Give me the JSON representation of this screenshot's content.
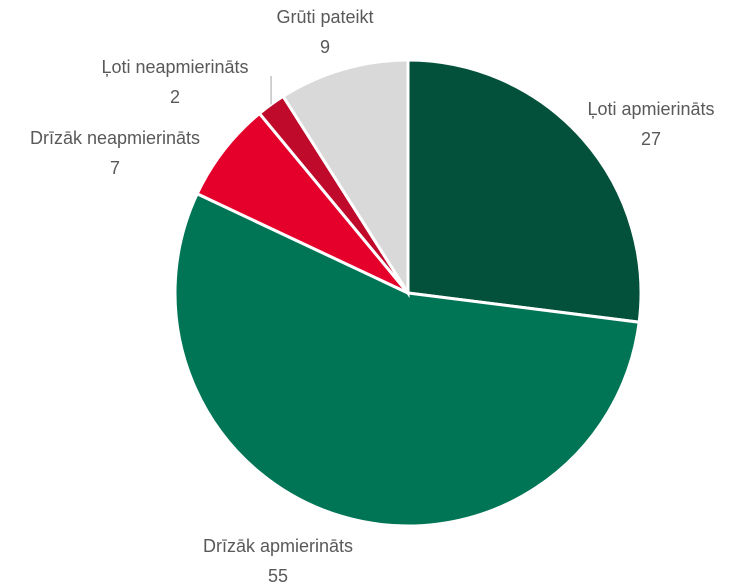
{
  "chart_data": {
    "type": "pie",
    "categories": [
      "Ļoti apmierināts",
      "Drīzāk apmierināts",
      "Drīzāk neapmierināts",
      "Ļoti neapmierināts",
      "Grūti pateikt"
    ],
    "values": [
      27,
      55,
      7,
      2,
      9
    ],
    "colors": [
      "#03513a",
      "#007556",
      "#e4002b",
      "#c00a2b",
      "#d9d9d9"
    ]
  }
}
